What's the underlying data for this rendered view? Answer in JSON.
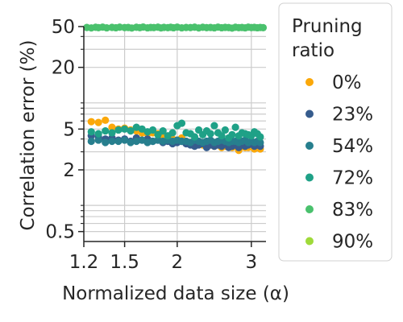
{
  "chart_data": {
    "type": "scatter",
    "xlabel": "Normalized data size (α)",
    "ylabel": "Correlation error (%)",
    "x_scale": "log",
    "y_scale": "log",
    "xlim": [
      1.2,
      3.25
    ],
    "ylim": [
      0.4,
      50
    ],
    "x_ticks": [
      {
        "value": 1.2,
        "label": "1.2"
      },
      {
        "value": 1.5,
        "label": "1.5"
      },
      {
        "value": 2,
        "label": "2"
      },
      {
        "value": 3,
        "label": "3"
      }
    ],
    "y_ticks": [
      {
        "value": 0.5,
        "label": "0.5"
      },
      {
        "value": 2,
        "label": "2"
      },
      {
        "value": 5,
        "label": "5"
      },
      {
        "value": 20,
        "label": "20"
      },
      {
        "value": 50,
        "label": "50"
      }
    ],
    "y_minor_ticks": [
      0.6,
      0.7,
      0.8,
      0.9,
      3,
      4,
      6,
      7,
      8,
      9,
      30,
      40
    ],
    "grid": true,
    "legend": {
      "title": "Pruning ratio",
      "title_lines": [
        "Pruning",
        "ratio"
      ],
      "placement": "outside-right"
    },
    "series": [
      {
        "name": "0%",
        "color": "#FBA809",
        "x": [
          1.25,
          1.3,
          1.35,
          1.4,
          1.45,
          1.5,
          1.55,
          1.6,
          1.65,
          1.7,
          1.75,
          1.8,
          1.85,
          1.9,
          1.95,
          2.0,
          2.05,
          2.1,
          2.15,
          2.2,
          2.25,
          2.3,
          2.35,
          2.4,
          2.45,
          2.5,
          2.55,
          2.6,
          2.65,
          2.7,
          2.75,
          2.8,
          2.85,
          2.9,
          2.95,
          3.0,
          3.05,
          3.1,
          3.15
        ],
        "y": [
          5.9,
          5.8,
          6.1,
          5.2,
          5.0,
          5.1,
          4.9,
          4.8,
          4.6,
          4.5,
          4.6,
          4.5,
          4.3,
          4.2,
          4.0,
          3.9,
          4.1,
          3.8,
          3.7,
          3.8,
          3.6,
          3.5,
          3.6,
          3.5,
          3.4,
          3.5,
          3.3,
          3.4,
          3.5,
          3.3,
          3.4,
          3.1,
          3.4,
          3.3,
          3.3,
          3.4,
          3.2,
          3.3,
          3.2
        ]
      },
      {
        "name": "23%",
        "color": "#365C8D",
        "x": [
          1.25,
          1.3,
          1.35,
          1.4,
          1.45,
          1.5,
          1.55,
          1.6,
          1.65,
          1.7,
          1.75,
          1.8,
          1.85,
          1.9,
          1.95,
          2.0,
          2.05,
          2.1,
          2.15,
          2.2,
          2.25,
          2.3,
          2.35,
          2.4,
          2.45,
          2.5,
          2.55,
          2.6,
          2.65,
          2.7,
          2.75,
          2.8,
          2.85,
          2.9,
          2.95,
          3.0,
          3.05,
          3.1,
          3.15
        ],
        "y": [
          4.3,
          4.2,
          4.0,
          4.1,
          3.9,
          4.0,
          3.8,
          4.1,
          3.9,
          4.0,
          3.8,
          3.9,
          3.7,
          3.8,
          3.6,
          3.7,
          3.8,
          3.6,
          3.5,
          3.4,
          3.5,
          3.6,
          3.3,
          3.5,
          3.4,
          3.5,
          3.4,
          3.6,
          3.3,
          3.4,
          3.5,
          3.3,
          3.6,
          3.4,
          3.5,
          3.6,
          3.4,
          3.5,
          3.4
        ]
      },
      {
        "name": "54%",
        "color": "#277F8E",
        "x": [
          1.25,
          1.3,
          1.35,
          1.4,
          1.45,
          1.5,
          1.55,
          1.6,
          1.65,
          1.7,
          1.75,
          1.8,
          1.85,
          1.9,
          1.95,
          2.0,
          2.05,
          2.1,
          2.15,
          2.2,
          2.25,
          2.3,
          2.35,
          2.4,
          2.45,
          2.5,
          2.55,
          2.6,
          2.65,
          2.7,
          2.75,
          2.8,
          2.85,
          2.9,
          2.95,
          3.0,
          3.05,
          3.1,
          3.15
        ],
        "y": [
          3.8,
          3.9,
          3.7,
          3.8,
          3.8,
          3.9,
          3.7,
          3.8,
          3.9,
          3.7,
          3.8,
          3.9,
          3.8,
          3.9,
          3.8,
          3.9,
          3.8,
          3.8,
          3.7,
          3.9,
          3.8,
          3.7,
          3.8,
          3.9,
          3.7,
          3.8,
          3.9,
          3.8,
          3.7,
          3.8,
          3.8,
          3.7,
          3.8,
          3.9,
          3.7,
          3.8,
          3.7,
          3.8,
          3.7
        ]
      },
      {
        "name": "72%",
        "color": "#1FA187",
        "x": [
          1.25,
          1.3,
          1.35,
          1.4,
          1.45,
          1.5,
          1.55,
          1.6,
          1.65,
          1.7,
          1.75,
          1.8,
          1.85,
          1.9,
          1.95,
          2.0,
          2.05,
          2.1,
          2.15,
          2.2,
          2.25,
          2.3,
          2.35,
          2.4,
          2.45,
          2.5,
          2.55,
          2.6,
          2.65,
          2.7,
          2.75,
          2.8,
          2.85,
          2.9,
          2.95,
          3.0,
          3.05,
          3.1,
          3.15
        ],
        "y": [
          4.7,
          4.5,
          4.8,
          4.6,
          4.9,
          5.0,
          4.8,
          5.2,
          5.0,
          4.7,
          4.9,
          4.4,
          4.8,
          4.3,
          4.6,
          5.4,
          5.7,
          4.6,
          4.5,
          4.2,
          4.9,
          4.4,
          4.8,
          4.5,
          5.4,
          4.6,
          4.3,
          4.9,
          4.1,
          4.4,
          5.2,
          4.3,
          4.6,
          4.5,
          4.4,
          4.3,
          4.7,
          4.5,
          4.2
        ]
      },
      {
        "name": "83%",
        "color": "#4AC16D",
        "x": [
          1.22,
          1.25,
          1.28,
          1.3,
          1.33,
          1.36,
          1.4,
          1.43,
          1.46,
          1.5,
          1.53,
          1.56,
          1.6,
          1.63,
          1.66,
          1.7,
          1.73,
          1.76,
          1.8,
          1.83,
          1.86,
          1.9,
          1.93,
          1.96,
          2.0,
          2.05,
          2.1,
          2.15,
          2.2,
          2.25,
          2.3,
          2.35,
          2.4,
          2.45,
          2.5,
          2.55,
          2.6,
          2.65,
          2.7,
          2.75,
          2.8,
          2.85,
          2.9,
          2.95,
          3.0,
          3.05,
          3.1,
          3.15,
          3.2
        ],
        "y": [
          49,
          48.5,
          49.2,
          48.8,
          49.4,
          48.6,
          49.1,
          48.7,
          49.3,
          48.9,
          49.0,
          48.4,
          49.2,
          48.8,
          49.5,
          48.6,
          49.0,
          48.9,
          49.3,
          48.5,
          49.1,
          48.8,
          49.2,
          48.7,
          49.4,
          48.6,
          49.0,
          48.9,
          49.3,
          48.5,
          49.2,
          48.8,
          49.0,
          48.6,
          49.4,
          48.7,
          49.1,
          48.9,
          48.3,
          49.2,
          48.8,
          49.0,
          48.6,
          49.3,
          48.9,
          49.1,
          48.7,
          49.0,
          48.8
        ]
      },
      {
        "name": "90%",
        "color": "#9FDA3A",
        "x": [],
        "y": []
      }
    ]
  }
}
